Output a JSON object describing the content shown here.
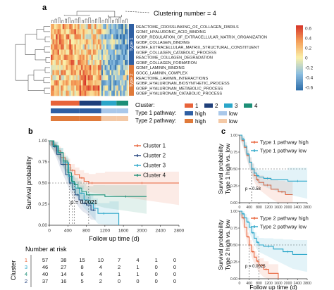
{
  "panel_labels": {
    "a": "a",
    "b": "b",
    "c": "c"
  },
  "clustering_number": "Clustering number = 4",
  "pathways": [
    "REACTOME_CROSSLINKING_OF_COLLAGEN_FIBRILS",
    "GOMF_HYALURONIC_ACID_BINDING",
    "GOBP_REGULATION_OF_EXTRACELLULAR_MATRIX_ORGANIZATION",
    "GOBP_COLLAGEN_BINDING",
    "GOMF_EXTRACELLULAR_MATRIX_STRUCTURAL_CONSTITUENT",
    "GOBP_COLLAGEN_CATABOLIC_PROCESS",
    "REACTOME_COLLAGEN_DEGRADATION",
    "GOBP_COLLAGEN_FORMATION",
    "GOMF_LAMININ_BINDING",
    "GOCC_LAMININ_COMPLEX",
    "REACTOME_LAMININ_INTERACTIONS",
    "GOBP_HYALURONAN_BIOSYNTHETIC_PROCESS",
    "GOBP_HYALURONAN_METABOLIC_PROCESS",
    "GOBP_HYALURONAN_CATABOLIC_PROCESS"
  ],
  "type_groups": [
    {
      "label": "Type 1",
      "color": "#2e5fa3"
    },
    {
      "label": "Type 2",
      "color": "#e07a3a"
    }
  ],
  "colorbar_ticks": [
    "0.6",
    "0.4",
    "0.2",
    "0",
    "-0.2",
    "-0.4",
    "-0.6"
  ],
  "annotation_legend": {
    "cluster_label": "Cluster:",
    "clusters": [
      {
        "label": "1",
        "color": "#e8633a"
      },
      {
        "label": "2",
        "color": "#1f3f7a"
      },
      {
        "label": "3",
        "color": "#2aa6c9"
      },
      {
        "label": "4",
        "color": "#1c8f77"
      }
    ],
    "type1_label": "Type 1 pathway:",
    "type1_levels": [
      {
        "label": "high",
        "color": "#2e5fa3"
      },
      {
        "label": "low",
        "color": "#a9c8ea"
      }
    ],
    "type2_label": "Type 2 pathway:",
    "type2_levels": [
      {
        "label": "high",
        "color": "#e07a3a"
      },
      {
        "label": "low",
        "color": "#f4c9a6"
      }
    ]
  },
  "km_b": {
    "ylabel": "Survival probability",
    "xlabel": "Follow up time (d)",
    "pvalue": "p = 0.0021",
    "risk_title": "Number at risk",
    "risk_ylabel": "Cluster",
    "risk_rows": [
      {
        "cluster": "1",
        "color": "#e8633a",
        "counts": [
          "57",
          "38",
          "15",
          "10",
          "7",
          "4",
          "1",
          "0"
        ]
      },
      {
        "cluster": "3",
        "color": "#2aa6c9",
        "counts": [
          "46",
          "27",
          "8",
          "4",
          "2",
          "1",
          "0",
          "0"
        ]
      },
      {
        "cluster": "4",
        "color": "#1c8f77",
        "counts": [
          "40",
          "14",
          "6",
          "4",
          "1",
          "1",
          "0",
          "0"
        ]
      },
      {
        "cluster": "2",
        "color": "#1f3f7a",
        "counts": [
          "37",
          "16",
          "5",
          "2",
          "0",
          "0",
          "0",
          "0"
        ]
      }
    ]
  },
  "km_c1": {
    "ylabel": "Survival probability\nType 1 high vs. low",
    "pvalue": "p = 0.58"
  },
  "km_c2": {
    "ylabel": "Survival probability\nType 2 high vs. low",
    "pvalue": "p = 0.0025",
    "xlabel": "Follow up time (d)"
  },
  "chart_data": [
    {
      "type": "line",
      "title": "",
      "xlabel": "Follow up time (d)",
      "ylabel": "Survival probability",
      "xlim": [
        0,
        2800
      ],
      "ylim": [
        0,
        1
      ],
      "xticks": [
        0,
        400,
        800,
        1200,
        1600,
        2000,
        2400,
        2800
      ],
      "yticks": [
        0.0,
        0.25,
        0.5,
        0.75,
        1.0
      ],
      "legend": "top-right",
      "series": [
        {
          "name": "Cluster 1",
          "color": "#e8633a",
          "x": [
            0,
            60,
            150,
            250,
            350,
            450,
            550,
            650,
            750,
            850,
            1000,
            1200,
            2800
          ],
          "y": [
            1.0,
            0.95,
            0.88,
            0.8,
            0.72,
            0.65,
            0.6,
            0.56,
            0.52,
            0.5,
            0.5,
            0.5,
            0.5
          ]
        },
        {
          "name": "Cluster 2",
          "color": "#1f3f7a",
          "x": [
            0,
            80,
            160,
            250,
            350,
            430,
            500,
            560,
            640,
            720,
            800,
            900,
            1000
          ],
          "y": [
            1.0,
            0.93,
            0.84,
            0.72,
            0.6,
            0.5,
            0.42,
            0.36,
            0.3,
            0.26,
            0.24,
            0.18,
            0.18
          ]
        },
        {
          "name": "Cluster 3",
          "color": "#2aa6c9",
          "x": [
            0,
            80,
            180,
            300,
            420,
            500,
            560,
            650,
            750,
            850,
            950,
            1050,
            1300,
            1500
          ],
          "y": [
            1.0,
            0.94,
            0.86,
            0.74,
            0.58,
            0.5,
            0.44,
            0.38,
            0.3,
            0.26,
            0.2,
            0.14,
            0.14,
            0.0
          ]
        },
        {
          "name": "Cluster 4",
          "color": "#1c8f77",
          "x": [
            0,
            100,
            200,
            300,
            400,
            480,
            540,
            620,
            700,
            800,
            950,
            1200,
            2100
          ],
          "y": [
            1.0,
            0.94,
            0.86,
            0.76,
            0.62,
            0.52,
            0.48,
            0.44,
            0.4,
            0.36,
            0.36,
            0.34,
            0.34
          ]
        }
      ]
    },
    {
      "type": "line",
      "xlim": [
        0,
        2800
      ],
      "ylim": [
        0,
        1
      ],
      "xticks": [
        0,
        400,
        800,
        1200,
        1600,
        2000,
        2400,
        2800
      ],
      "yticks": [
        0.0,
        0.25,
        0.5,
        0.75,
        1.0
      ],
      "legend": "top-right",
      "series": [
        {
          "name": "Type 1 pathway high",
          "color": "#e8633a",
          "x": [
            0,
            100,
            200,
            300,
            400,
            500,
            600,
            700,
            800,
            1000,
            1300,
            1600,
            1900,
            2200
          ],
          "y": [
            1.0,
            0.92,
            0.82,
            0.7,
            0.6,
            0.5,
            0.4,
            0.34,
            0.3,
            0.26,
            0.2,
            0.16,
            0.12,
            0.12
          ]
        },
        {
          "name": "Type 1 pathway low",
          "color": "#2aa6c9",
          "x": [
            0,
            100,
            200,
            300,
            400,
            500,
            600,
            700,
            800,
            1000,
            1300,
            2000,
            2800
          ],
          "y": [
            1.0,
            0.94,
            0.84,
            0.72,
            0.6,
            0.5,
            0.44,
            0.4,
            0.38,
            0.36,
            0.34,
            0.32,
            0.32
          ]
        }
      ]
    },
    {
      "type": "line",
      "xlabel": "Follow up time (d)",
      "xlim": [
        0,
        2800
      ],
      "ylim": [
        0,
        1
      ],
      "xticks": [
        0,
        400,
        800,
        1200,
        1600,
        2000,
        2400,
        2800
      ],
      "yticks": [
        0.0,
        0.25,
        0.5,
        0.75,
        1.0
      ],
      "legend": "top-right",
      "series": [
        {
          "name": "Type 2 pathway high",
          "color": "#e8633a",
          "x": [
            0,
            100,
            200,
            300,
            400,
            500,
            600,
            700,
            800,
            1000,
            1200,
            1600
          ],
          "y": [
            1.0,
            0.9,
            0.76,
            0.62,
            0.5,
            0.4,
            0.32,
            0.26,
            0.2,
            0.14,
            0.08,
            0.0
          ]
        },
        {
          "name": "Type 2 pathway low",
          "color": "#2aa6c9",
          "x": [
            0,
            100,
            200,
            300,
            400,
            500,
            600,
            700,
            800,
            1000,
            1400,
            1800,
            2200,
            2800
          ],
          "y": [
            1.0,
            0.96,
            0.9,
            0.84,
            0.76,
            0.68,
            0.6,
            0.54,
            0.5,
            0.48,
            0.44,
            0.4,
            0.36,
            0.36
          ]
        }
      ]
    }
  ]
}
